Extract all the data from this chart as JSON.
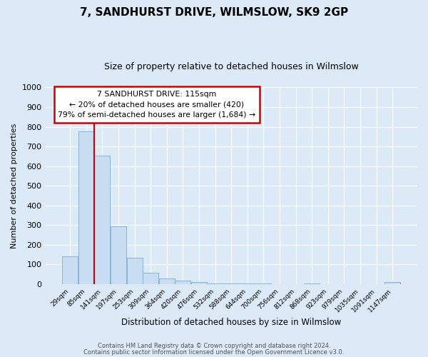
{
  "title": "7, SANDHURST DRIVE, WILMSLOW, SK9 2GP",
  "subtitle": "Size of property relative to detached houses in Wilmslow",
  "xlabel": "Distribution of detached houses by size in Wilmslow",
  "ylabel": "Number of detached properties",
  "bin_labels": [
    "29sqm",
    "85sqm",
    "141sqm",
    "197sqm",
    "253sqm",
    "309sqm",
    "364sqm",
    "420sqm",
    "476sqm",
    "532sqm",
    "588sqm",
    "644sqm",
    "700sqm",
    "756sqm",
    "812sqm",
    "868sqm",
    "923sqm",
    "979sqm",
    "1035sqm",
    "1091sqm",
    "1147sqm"
  ],
  "bar_values": [
    140,
    775,
    655,
    295,
    135,
    57,
    30,
    17,
    10,
    5,
    5,
    5,
    5,
    0,
    0,
    5,
    0,
    0,
    0,
    0,
    10
  ],
  "bar_color": "#c9ddf2",
  "bar_edge_color": "#7aadd6",
  "vline_color": "#cc0000",
  "ylim": [
    0,
    1000
  ],
  "yticks": [
    0,
    100,
    200,
    300,
    400,
    500,
    600,
    700,
    800,
    900,
    1000
  ],
  "annotation_title": "7 SANDHURST DRIVE: 115sqm",
  "annotation_line1": "← 20% of detached houses are smaller (420)",
  "annotation_line2": "79% of semi-detached houses are larger (1,684) →",
  "annotation_box_color": "#ffffff",
  "annotation_box_edge_color": "#cc0000",
  "footer_line1": "Contains HM Land Registry data © Crown copyright and database right 2024.",
  "footer_line2": "Contains public sector information licensed under the Open Government Licence v3.0.",
  "background_color": "#dce9f7",
  "plot_background_color": "#dce9f7",
  "title_fontsize": 11,
  "subtitle_fontsize": 9
}
